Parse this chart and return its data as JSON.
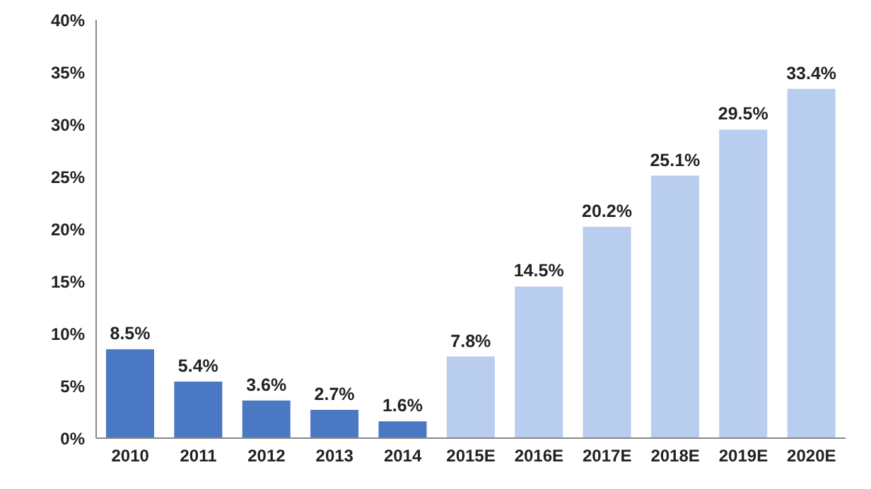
{
  "chart_data": {
    "type": "bar",
    "categories": [
      "2010",
      "2011",
      "2012",
      "2013",
      "2014",
      "2015E",
      "2016E",
      "2017E",
      "2018E",
      "2019E",
      "2020E"
    ],
    "values": [
      8.5,
      5.4,
      3.6,
      2.7,
      1.6,
      7.8,
      14.5,
      20.2,
      25.1,
      29.5,
      33.4
    ],
    "colors": [
      "#4a78c2",
      "#4a78c2",
      "#4a78c2",
      "#4a78c2",
      "#4a78c2",
      "#b9cdee",
      "#b9cdee",
      "#b9cdee",
      "#b9cdee",
      "#b9cdee",
      "#b9cdee"
    ],
    "value_labels": [
      "8.5%",
      "5.4%",
      "3.6%",
      "2.7%",
      "1.6%",
      "7.8%",
      "14.5%",
      "20.2%",
      "25.1%",
      "29.5%",
      "33.4%"
    ],
    "ylim": [
      0,
      40
    ],
    "yticks": [
      {
        "value": 0,
        "label": "0%"
      },
      {
        "value": 5,
        "label": "5%"
      },
      {
        "value": 10,
        "label": "10%"
      },
      {
        "value": 15,
        "label": "15%"
      },
      {
        "value": 20,
        "label": "20%"
      },
      {
        "value": 25,
        "label": "25%"
      },
      {
        "value": 30,
        "label": "30%"
      },
      {
        "value": 35,
        "label": "35%"
      },
      {
        "value": 40,
        "label": "40%"
      }
    ],
    "grid": false,
    "legend": false
  }
}
